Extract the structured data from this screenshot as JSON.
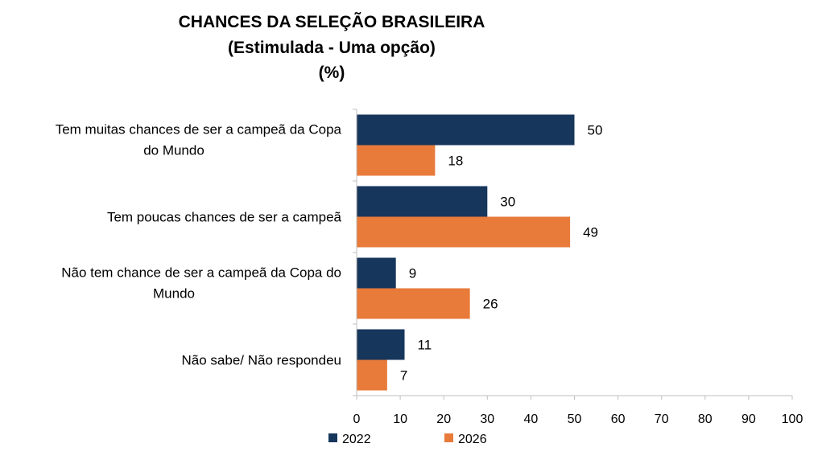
{
  "chart_data": {
    "type": "bar",
    "orientation": "horizontal",
    "title_lines": [
      "CHANCES DA SELEÇÃO BRASILEIRA",
      "(Estimulada - Uma opção)",
      "(%)"
    ],
    "categories": [
      [
        "Tem muitas chances de ser a campeã da Copa",
        "do Mundo"
      ],
      [
        "Tem poucas chances de ser a campeã"
      ],
      [
        "Não tem chance de ser a campeã da Copa do",
        "Mundo"
      ],
      [
        "Não sabe/ Não respondeu"
      ]
    ],
    "series": [
      {
        "name": "2022",
        "color": "#16365c",
        "values": [
          50,
          30,
          9,
          11
        ]
      },
      {
        "name": "2026",
        "color": "#e87a3a",
        "values": [
          18,
          49,
          26,
          7
        ]
      }
    ],
    "xlim": [
      0,
      100
    ],
    "xticks": [
      0,
      10,
      20,
      30,
      40,
      50,
      60,
      70,
      80,
      90,
      100
    ],
    "grid": false,
    "legend_position": "bottom"
  }
}
